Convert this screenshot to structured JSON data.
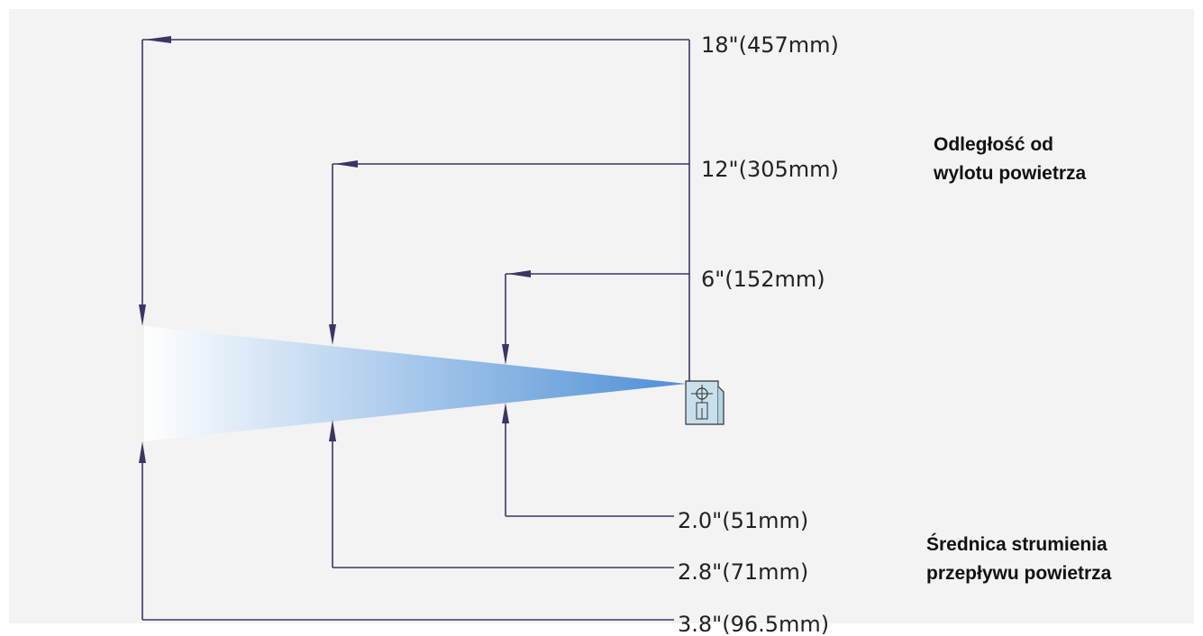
{
  "title_distance": {
    "line1": "Odległość od",
    "line2": "wylotu powietrza"
  },
  "title_diameter": {
    "line1": "Średnica strumienia",
    "line2": "przepływu powietrza"
  },
  "distances": [
    {
      "label": "18\"(457mm)"
    },
    {
      "label": "12\"(305mm)"
    },
    {
      "label": "6\"(152mm)"
    }
  ],
  "diameters": [
    {
      "label": "2.0\"(51mm)"
    },
    {
      "label": "2.8\"(71mm)"
    },
    {
      "label": "3.8\"(96.5mm)"
    }
  ],
  "colors": {
    "line": "#3b3566",
    "cone_start": "#ffffff",
    "cone_end": "#4d8fd6",
    "nozzle_fill": "#c8e0ec"
  },
  "icons": {
    "nozzle": "air-nozzle-icon"
  }
}
